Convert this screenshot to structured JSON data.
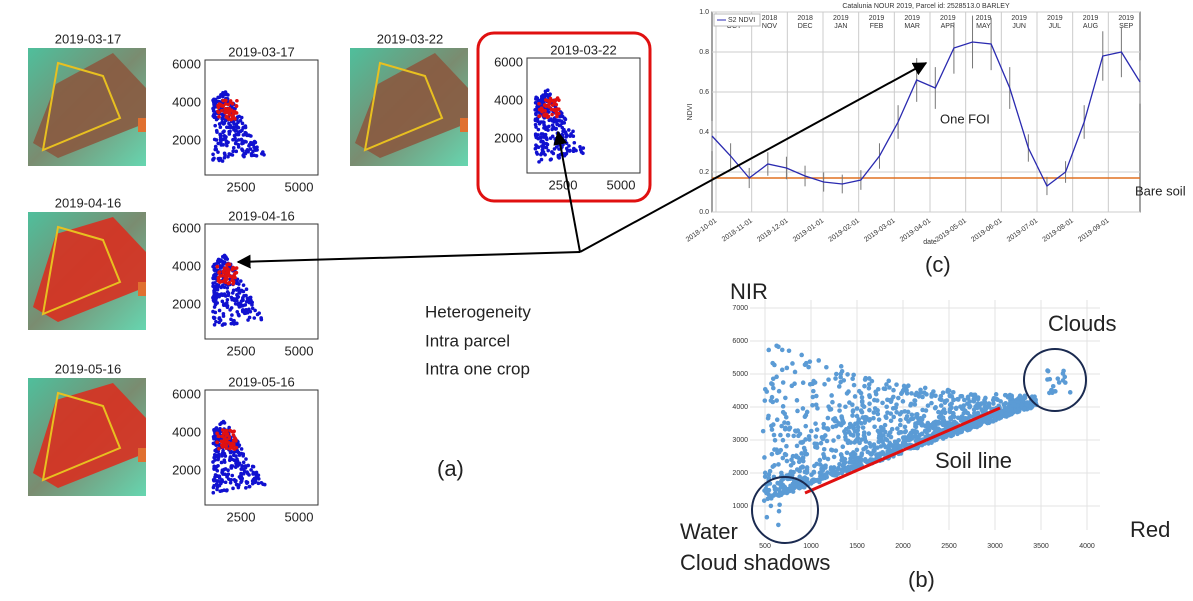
{
  "panel_a": {
    "label": "(a)",
    "rows": [
      {
        "image_title": "2019-03-17",
        "plot_title": "2019-03-17"
      },
      {
        "image_title": "2019-04-16",
        "plot_title": "2019-04-16"
      },
      {
        "image_title": "2019-05-16",
        "plot_title": "2019-05-16"
      }
    ],
    "extra": {
      "image_title": "2019-03-22",
      "plot_title": "2019-03-22"
    },
    "yticks": [
      "6000",
      "4000",
      "2000"
    ],
    "xticks": [
      "2500",
      "5000"
    ],
    "notes": [
      "Heterogeneity",
      "Intra parcel",
      "Intra one crop"
    ]
  },
  "panel_c": {
    "type": "line",
    "label": "(c)",
    "title": "Catalunia NOUR 2019, Parcel id: 2528513.0 BARLEY",
    "y_label": "NDVI",
    "x_label": "date",
    "ylim": [
      0,
      1
    ],
    "yticks": [
      {
        "value": 0,
        "label": "0.0"
      },
      {
        "value": 0.2,
        "label": "0.2"
      },
      {
        "value": 0.4,
        "label": "0.4"
      },
      {
        "value": 0.6,
        "label": "0.6"
      },
      {
        "value": 0.8,
        "label": "0.8"
      },
      {
        "value": 1,
        "label": "1.0"
      }
    ],
    "xticks": [
      "2018-10-01",
      "2018-11-01",
      "2018-12-01",
      "2019-01-01",
      "2019-02-01",
      "2019-03-01",
      "2019-04-01",
      "2019-05-01",
      "2019-06-01",
      "2019-07-01",
      "2019-08-01",
      "2019-09-01"
    ],
    "months": [
      [
        "2018",
        "OCT"
      ],
      [
        "2018",
        "NOV"
      ],
      [
        "2018",
        "DEC"
      ],
      [
        "2019",
        "JAN"
      ],
      [
        "2019",
        "FEB"
      ],
      [
        "2019",
        "MAR"
      ],
      [
        "2019",
        "APR"
      ],
      [
        "2019",
        "MAY"
      ],
      [
        "2019",
        "JUN"
      ],
      [
        "2019",
        "JUL"
      ],
      [
        "2019",
        "AUG"
      ],
      [
        "2019",
        "SEP"
      ]
    ],
    "series": [
      {
        "name": "S2 NDVI",
        "color": "#2a2ab0",
        "values": [
          0.38,
          0.28,
          0.17,
          0.24,
          0.22,
          0.18,
          0.15,
          0.14,
          0.16,
          0.28,
          0.45,
          0.66,
          0.62,
          0.82,
          0.85,
          0.84,
          0.62,
          0.32,
          0.13,
          0.2,
          0.45,
          0.78,
          0.8,
          0.65
        ]
      }
    ],
    "bare_soil": {
      "value": 0.17,
      "label": "Bare soil",
      "color": "#e07020"
    },
    "annotation": "One FOI"
  },
  "panel_b": {
    "label": "(b)",
    "y_label": "NIR",
    "x_label": "Red",
    "yticks": [
      "1000",
      "2000",
      "3000",
      "4000",
      "5000",
      "6000",
      "7000"
    ],
    "xticks": [
      "500",
      "1000",
      "1500",
      "2000",
      "2500",
      "3000",
      "3500",
      "4000"
    ],
    "annotations": {
      "clouds": "Clouds",
      "soil_line": "Soil line",
      "water": "Water",
      "shadows": "Cloud shadows"
    }
  }
}
